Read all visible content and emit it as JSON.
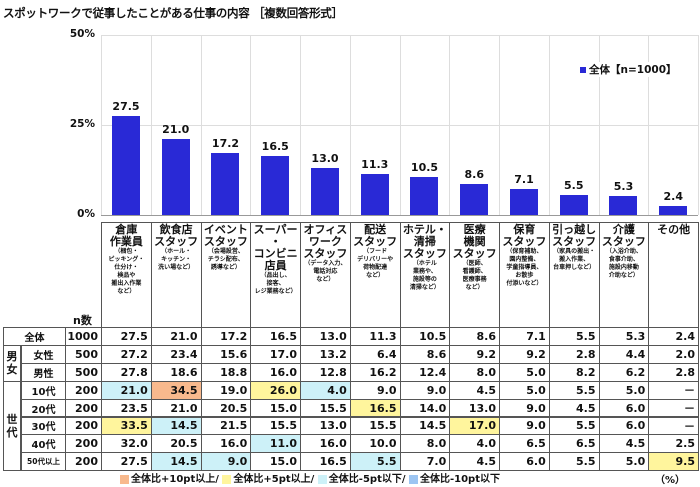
{
  "chart_data": {
    "type": "bar",
    "title": "スポットワークで従事したことがある仕事の内容 ［複数回答形式］",
    "ylim": [
      0,
      50
    ],
    "yticks": [
      "0%",
      "25%",
      "50%"
    ],
    "legend": {
      "label": "全体【n=1000】",
      "placement": "top-right"
    },
    "bar_color": "#2929d6",
    "grid": true,
    "categories": [
      {
        "main": "倉庫\n作業員",
        "sub": "（梱包・\nピッキング・\n仕分け・\n検品や\n搬出入作業\nなど）"
      },
      {
        "main": "飲食店\nスタッフ",
        "sub": "（ホール・\nキッチン・\n洗い場など）"
      },
      {
        "main": "イベント\nスタッフ",
        "sub": "（会場設営、\nチラシ配布、\n誘導など）"
      },
      {
        "main": "スーパー\n・\nコンビニ\n店員",
        "sub": "（品出し、\n接客、\nレジ業務など）"
      },
      {
        "main": "オフィス\nワーク\nスタッフ",
        "sub": "（データ入力、\n電話対応\nなど）"
      },
      {
        "main": "配送\nスタッフ",
        "sub": "（フード\nデリバリーや\n荷物配達\nなど）"
      },
      {
        "main": "ホテル・\n清掃\nスタッフ",
        "sub": "（ホテル\n業務や、\n施設等の\n清掃など）"
      },
      {
        "main": "医療\n機関\nスタッフ",
        "sub": "（医師、\n看護師、\n医療事務\nなど）"
      },
      {
        "main": "保育\nスタッフ",
        "sub": "（保育補助、\n園内整備、\n学童指導員、\nお散歩\n付添いなど）"
      },
      {
        "main": "引っ越し\nスタッフ",
        "sub": "（家具の搬出・\n搬入作業、\n台車押しなど）"
      },
      {
        "main": "介護\nスタッフ",
        "sub": "（入浴介助、\n食事介助、\n施設内移動\n介助など）"
      },
      {
        "main": "その他",
        "sub": ""
      }
    ],
    "values": [
      27.5,
      21.0,
      17.2,
      16.5,
      13.0,
      11.3,
      10.5,
      8.6,
      7.1,
      5.5,
      5.3,
      2.4
    ],
    "value_labels": [
      "27.5",
      "21.0",
      "17.2",
      "16.5",
      "13.0",
      "11.3",
      "10.5",
      "8.6",
      "7.1",
      "5.5",
      "5.3",
      "2.4"
    ]
  },
  "table": {
    "n_header": "n数",
    "group_gender": "男\n女",
    "group_age": "世\n代",
    "rows": [
      {
        "label": "全体",
        "n": "1000",
        "values": [
          "27.5",
          "21.0",
          "17.2",
          "16.5",
          "13.0",
          "11.3",
          "10.5",
          "8.6",
          "7.1",
          "5.5",
          "5.3",
          "2.4"
        ],
        "hl": [
          "",
          "",
          "",
          "",
          "",
          "",
          "",
          "",
          "",
          "",
          "",
          ""
        ]
      },
      {
        "label": "女性",
        "n": "500",
        "values": [
          "27.2",
          "23.4",
          "15.6",
          "17.0",
          "13.2",
          "6.4",
          "8.6",
          "9.2",
          "9.2",
          "2.8",
          "4.4",
          "2.0"
        ],
        "hl": [
          "",
          "",
          "",
          "",
          "",
          "",
          "",
          "",
          "",
          "",
          "",
          ""
        ]
      },
      {
        "label": "男性",
        "n": "500",
        "values": [
          "27.8",
          "18.6",
          "18.8",
          "16.0",
          "12.8",
          "16.2",
          "12.4",
          "8.0",
          "5.0",
          "8.2",
          "6.2",
          "2.8"
        ],
        "hl": [
          "",
          "",
          "",
          "",
          "",
          "",
          "",
          "",
          "",
          "",
          "",
          ""
        ]
      },
      {
        "label": "10代",
        "n": "200",
        "values": [
          "21.0",
          "34.5",
          "19.0",
          "26.0",
          "4.0",
          "9.0",
          "9.0",
          "4.5",
          "5.0",
          "5.5",
          "5.0",
          "－"
        ],
        "hl": [
          "m5",
          "p10",
          "",
          "p5",
          "m5",
          "",
          "",
          "",
          "",
          "",
          "",
          ""
        ]
      },
      {
        "label": "20代",
        "n": "200",
        "values": [
          "23.5",
          "21.0",
          "20.5",
          "15.0",
          "15.5",
          "16.5",
          "14.0",
          "13.0",
          "9.0",
          "4.5",
          "6.0",
          "－"
        ],
        "hl": [
          "",
          "",
          "",
          "",
          "",
          "p5",
          "",
          "",
          "",
          "",
          "",
          ""
        ]
      },
      {
        "label": "30代",
        "n": "200",
        "values": [
          "33.5",
          "14.5",
          "21.5",
          "15.5",
          "13.0",
          "15.5",
          "14.5",
          "17.0",
          "9.0",
          "5.5",
          "6.0",
          "－"
        ],
        "hl": [
          "p5",
          "m5",
          "",
          "",
          "",
          "",
          "",
          "p5",
          "",
          "",
          "",
          ""
        ]
      },
      {
        "label": "40代",
        "n": "200",
        "values": [
          "32.0",
          "20.5",
          "16.0",
          "11.0",
          "16.0",
          "10.0",
          "8.0",
          "4.0",
          "6.5",
          "6.5",
          "4.5",
          "2.5"
        ],
        "hl": [
          "",
          "",
          "",
          "m5",
          "",
          "",
          "",
          "",
          "",
          "",
          "",
          ""
        ]
      },
      {
        "label": "50代以上",
        "n": "200",
        "values": [
          "27.5",
          "14.5",
          "9.0",
          "15.0",
          "16.5",
          "5.5",
          "7.0",
          "4.5",
          "6.0",
          "5.5",
          "5.0",
          "9.5"
        ],
        "hl": [
          "",
          "m5",
          "m5",
          "",
          "",
          "m5",
          "",
          "",
          "",
          "",
          "",
          "p5"
        ]
      }
    ]
  },
  "highlight_colors": {
    "p10": "#f8b98d",
    "p5": "#fff59d",
    "m5": "#cdf1f8",
    "m10": "#9cc5f2"
  },
  "footer": {
    "p10": "全体比+10pt以上/",
    "p5": "全体比+5pt以上/",
    "m5": "全体比-5pt以下/",
    "m10": "全体比-10pt以下",
    "unit": "（%）"
  }
}
